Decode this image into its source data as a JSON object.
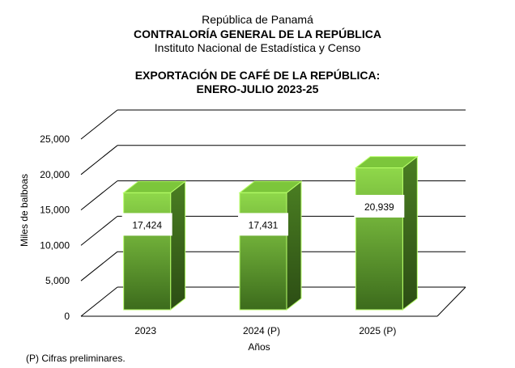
{
  "header": {
    "country": "República de Panamá",
    "agency": "CONTRALORÍA GENERAL DE LA REPÚBLICA",
    "institute": "Instituto Nacional de Estadística y Censo",
    "chart_title_line1": "EXPORTACIÓN DE CAFÉ DE LA REPÚBLICA:",
    "chart_title_line2": "ENERO-JULIO 2023-25"
  },
  "footnote": "(P) Cifras  preliminares.",
  "colors": {
    "bar_front_top": "#8fd84a",
    "bar_front_bottom": "#3c6b1c",
    "bar_side": "#4a7e22",
    "bar_top": "#7cc63b",
    "bar_edge": "#b8ff6a",
    "grid": "#000000"
  },
  "chart_data": {
    "type": "bar",
    "title": "EXPORTACIÓN DE CAFÉ DE LA REPÚBLICA: ENERO-JULIO 2023-25",
    "xlabel": "Años",
    "ylabel": "Miles de balboas",
    "categories": [
      "2023",
      "2024 (P)",
      "2025 (P)"
    ],
    "values": [
      17424,
      17431,
      20939
    ],
    "value_labels": [
      "17,424",
      "17,431",
      "20,939"
    ],
    "ylim": [
      0,
      25000
    ],
    "yticks": [
      0,
      5000,
      10000,
      15000,
      20000,
      25000
    ],
    "ytick_labels": [
      "0",
      "5,000",
      "10,000",
      "15,000",
      "20,000",
      "25,000"
    ],
    "grid": true,
    "legend": "none",
    "style": "3d"
  }
}
